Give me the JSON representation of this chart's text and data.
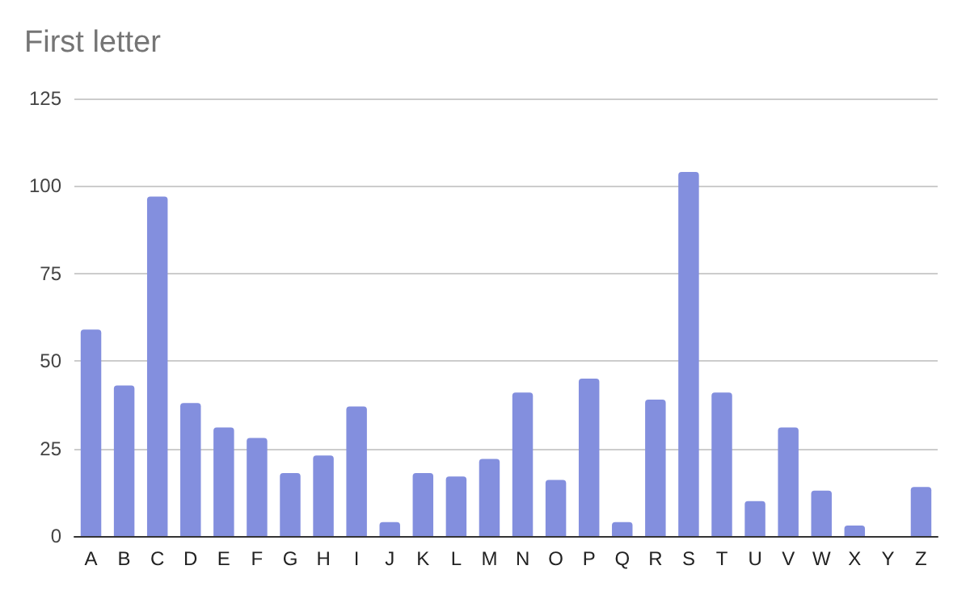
{
  "chart_data": {
    "type": "bar",
    "title": "First letter",
    "categories": [
      "A",
      "B",
      "C",
      "D",
      "E",
      "F",
      "G",
      "H",
      "I",
      "J",
      "K",
      "L",
      "M",
      "N",
      "O",
      "P",
      "Q",
      "R",
      "S",
      "T",
      "U",
      "V",
      "W",
      "X",
      "Y",
      "Z"
    ],
    "values": [
      59,
      43,
      97,
      38,
      31,
      28,
      18,
      23,
      37,
      4,
      18,
      17,
      22,
      41,
      16,
      45,
      4,
      39,
      104,
      41,
      10,
      31,
      13,
      3,
      0,
      14
    ],
    "color": "#838fde",
    "ylim": [
      0,
      125
    ],
    "yticks": [
      0,
      25,
      50,
      75,
      100,
      125
    ],
    "grid": "y"
  }
}
